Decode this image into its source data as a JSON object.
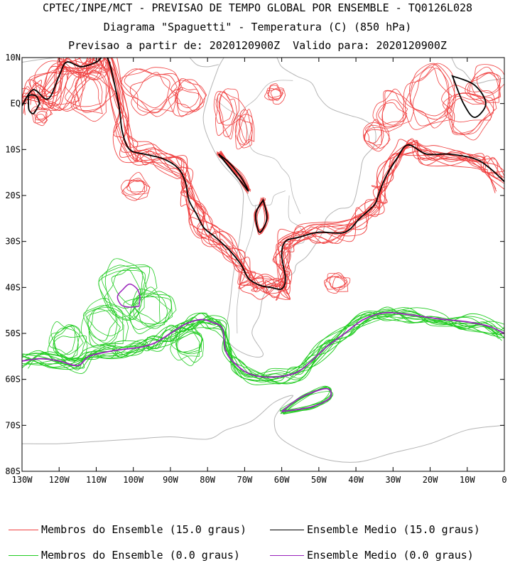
{
  "header": {
    "line1": "CPTEC/INPE/MCT - PREVISAO DE TEMPO GLOBAL POR ENSEMBLE - TQ0126L028",
    "line2": "Diagrama \"Spaguetti\" - Temperatura (C) (850 hPa)",
    "line3": "Previsao a partir de: 2020120900Z  Valido para: 2020120900Z"
  },
  "chart_data": {
    "type": "spaghetti-contour-map",
    "title": "Diagrama \"Spaguetti\" - Temperatura (C) (850 hPa)",
    "xlim": [
      -130,
      0
    ],
    "ylim": [
      -80,
      10
    ],
    "x_ticks": [
      {
        "value": -130,
        "label": "130W"
      },
      {
        "value": -120,
        "label": "120W"
      },
      {
        "value": -110,
        "label": "110W"
      },
      {
        "value": -100,
        "label": "100W"
      },
      {
        "value": -90,
        "label": "90W"
      },
      {
        "value": -80,
        "label": "80W"
      },
      {
        "value": -70,
        "label": "70W"
      },
      {
        "value": -60,
        "label": "60W"
      },
      {
        "value": -50,
        "label": "50W"
      },
      {
        "value": -40,
        "label": "40W"
      },
      {
        "value": -30,
        "label": "30W"
      },
      {
        "value": -20,
        "label": "20W"
      },
      {
        "value": -10,
        "label": "10W"
      },
      {
        "value": 0,
        "label": "0"
      }
    ],
    "y_ticks": [
      {
        "value": 10,
        "label": "10N"
      },
      {
        "value": 0,
        "label": "EQ"
      },
      {
        "value": -10,
        "label": "10S"
      },
      {
        "value": -20,
        "label": "20S"
      },
      {
        "value": -30,
        "label": "30S"
      },
      {
        "value": -40,
        "label": "40S"
      },
      {
        "value": -50,
        "label": "50S"
      },
      {
        "value": -60,
        "label": "60S"
      },
      {
        "value": -70,
        "label": "70S"
      },
      {
        "value": -80,
        "label": "80S"
      }
    ],
    "colors": {
      "member_15": "#f04040",
      "mean_15": "#000000",
      "member_0": "#22cc22",
      "mean_0": "#9922bb",
      "coast": "#b4b4b4"
    },
    "series": [
      {
        "name": "Ensemble Medio (15.0 graus)",
        "role": "mean_15",
        "points": [
          [
            -130,
            -0.5
          ],
          [
            -127,
            3
          ],
          [
            -123,
            1
          ],
          [
            -120,
            6
          ],
          [
            -118,
            9
          ],
          [
            -114,
            8
          ],
          [
            -110,
            9
          ],
          [
            -107,
            10
          ],
          [
            -104,
            0
          ],
          [
            -103,
            -6
          ],
          [
            -101,
            -10
          ],
          [
            -97,
            -11
          ],
          [
            -92,
            -12
          ],
          [
            -88,
            -14
          ],
          [
            -86,
            -17
          ],
          [
            -85,
            -21
          ],
          [
            -83,
            -24
          ],
          [
            -81,
            -27
          ],
          [
            -78,
            -29
          ],
          [
            -74,
            -32
          ],
          [
            -71,
            -35
          ],
          [
            -69,
            -38
          ],
          [
            -66,
            -39.5
          ],
          [
            -63,
            -40
          ],
          [
            -60,
            -40.3
          ],
          [
            -59,
            -38
          ],
          [
            -60,
            -33
          ],
          [
            -59,
            -30
          ],
          [
            -55,
            -29
          ],
          [
            -50,
            -28
          ],
          [
            -43,
            -28
          ],
          [
            -39,
            -25
          ],
          [
            -35,
            -22
          ],
          [
            -34,
            -20
          ],
          [
            -32,
            -16
          ],
          [
            -29,
            -12
          ],
          [
            -26,
            -9
          ],
          [
            -21,
            -11
          ],
          [
            -15,
            -11
          ],
          [
            -8,
            -12
          ],
          [
            -4,
            -14
          ],
          [
            0,
            -17
          ]
        ]
      },
      {
        "name": "Ensemble Medio (0.0 graus)",
        "role": "mean_0",
        "points": [
          [
            -130,
            -56
          ],
          [
            -125,
            -55.5
          ],
          [
            -120,
            -56
          ],
          [
            -115,
            -57
          ],
          [
            -112,
            -55
          ],
          [
            -107,
            -54
          ],
          [
            -103,
            -53.5
          ],
          [
            -98,
            -53
          ],
          [
            -94,
            -52
          ],
          [
            -90,
            -50
          ],
          [
            -86,
            -48
          ],
          [
            -82,
            -47
          ],
          [
            -79,
            -47.5
          ],
          [
            -76,
            -49
          ],
          [
            -75,
            -54
          ],
          [
            -72,
            -57
          ],
          [
            -68,
            -59
          ],
          [
            -62,
            -59.5
          ],
          [
            -56,
            -58.5
          ],
          [
            -52,
            -56
          ],
          [
            -48,
            -53
          ],
          [
            -43,
            -50
          ],
          [
            -38,
            -47
          ],
          [
            -32,
            -45.5
          ],
          [
            -25,
            -46
          ],
          [
            -18,
            -46.8
          ],
          [
            -10,
            -47.5
          ],
          [
            -4,
            -48.5
          ],
          [
            0,
            -50
          ]
        ]
      }
    ],
    "legend": [
      {
        "label": "Membros do Ensemble (15.0 graus)",
        "color": "#f04040"
      },
      {
        "label": "Ensemble Medio (15.0 graus)",
        "color": "#000000"
      },
      {
        "label": "Membros do Ensemble (0.0 graus)",
        "color": "#22cc22"
      },
      {
        "label": "Ensemble Medio (0.0 graus)",
        "color": "#9922bb"
      }
    ],
    "legend_position": "bottom"
  }
}
